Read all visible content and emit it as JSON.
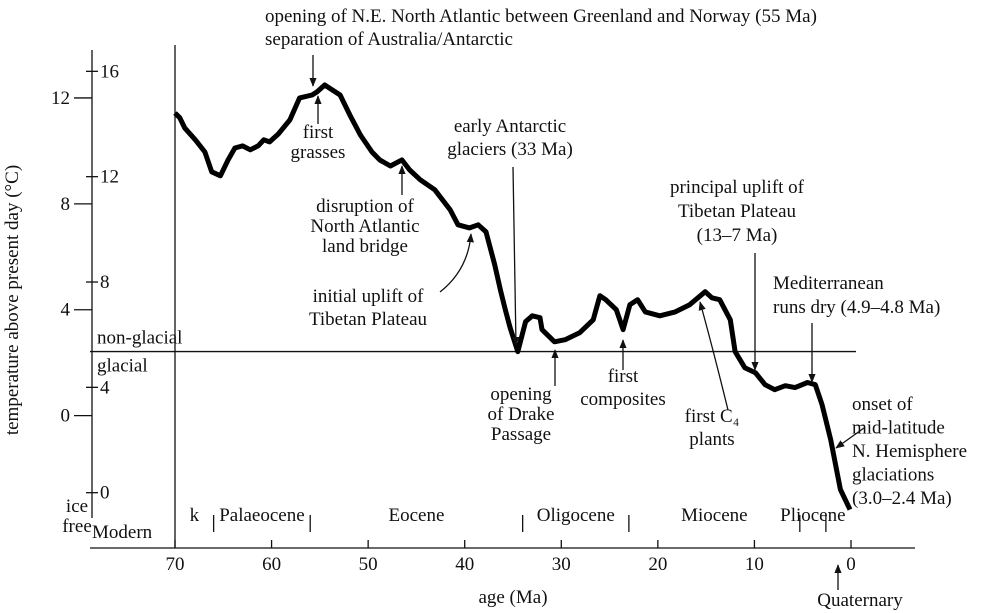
{
  "chart_data": {
    "type": "line",
    "x_label": "age (Ma)",
    "y_label": "temperature above present day (°C)",
    "x": [
      70.0,
      69.5,
      69.0,
      67.9,
      66.9,
      66.2,
      65.3,
      64.5,
      63.8,
      63.0,
      62.2,
      61.4,
      60.8,
      60.2,
      59.3,
      58.1,
      57.1,
      55.8,
      55.3,
      54.5,
      52.9,
      51.9,
      50.8,
      49.6,
      48.8,
      47.7,
      46.5,
      45.7,
      44.6,
      43.1,
      41.5,
      40.7,
      39.5,
      38.6,
      37.8,
      36.9,
      36.3,
      35.8,
      35.3,
      34.5,
      33.7,
      33.0,
      32.2,
      32.0,
      30.7,
      29.6,
      28.1,
      26.7,
      26.0,
      25.4,
      24.3,
      23.6,
      22.9,
      22.1,
      21.3,
      19.8,
      18.2,
      16.7,
      15.1,
      14.4,
      13.6,
      12.5,
      12.0,
      11.0,
      9.9,
      8.9,
      7.9,
      6.8,
      5.8,
      4.5,
      3.7,
      3.0,
      2.1,
      1.1,
      0.1
    ],
    "series": [
      {
        "color": "#000000",
        "values": [
          11.43,
          11.25,
          10.87,
          10.42,
          9.96,
          9.21,
          9.06,
          9.66,
          10.11,
          10.19,
          10.04,
          10.19,
          10.42,
          10.34,
          10.64,
          11.17,
          12.0,
          12.11,
          12.23,
          12.49,
          12.11,
          11.36,
          10.6,
          9.96,
          9.66,
          9.43,
          9.66,
          9.28,
          8.91,
          8.53,
          7.77,
          7.21,
          7.09,
          7.21,
          6.94,
          5.7,
          4.75,
          4.0,
          3.32,
          2.42,
          3.55,
          3.77,
          3.7,
          3.25,
          2.79,
          2.87,
          3.13,
          3.62,
          4.53,
          4.38,
          4.0,
          3.25,
          4.19,
          4.38,
          3.92,
          3.77,
          3.92,
          4.19,
          4.68,
          4.45,
          4.38,
          3.62,
          2.42,
          1.81,
          1.62,
          1.17,
          0.98,
          1.13,
          1.06,
          1.25,
          1.17,
          0.42,
          -0.91,
          -2.79,
          -3.55
        ]
      }
    ],
    "xlim": [
      70,
      0
    ],
    "xticks": [
      70,
      60,
      50,
      40,
      30,
      20,
      10,
      0
    ],
    "ylim": [
      -5,
      14
    ],
    "yticks": [
      0,
      4,
      8,
      12
    ],
    "y2lim": [
      -2.1,
      17
    ],
    "y2ticks": [
      0,
      4,
      8,
      12,
      16
    ],
    "threshold": {
      "value": 2.42,
      "above": "non-glacial",
      "below": "glacial"
    },
    "ice_free": [
      "ice",
      "free"
    ],
    "modern": "Modern",
    "epochs": [
      {
        "name": "k",
        "start": 70,
        "end": 66
      },
      {
        "name": "Palaeocene",
        "start": 66,
        "end": 56
      },
      {
        "name": "Eocene",
        "start": 56,
        "end": 34
      },
      {
        "name": "Oligocene",
        "start": 34,
        "end": 23
      },
      {
        "name": "Miocene",
        "start": 23,
        "end": 5.3
      },
      {
        "name": "Pliocene",
        "start": 5.3,
        "end": 2.6
      },
      {
        "name": "Quaternary",
        "start": 2.6,
        "end": 0
      }
    ],
    "annotations": [
      {
        "lines": [
          "opening of N.E. North Atlantic between Greenland and Norway (55 Ma)",
          "separation of Australia/Antarctic"
        ]
      },
      {
        "lines": [
          "first",
          "grasses"
        ]
      },
      {
        "lines": [
          "disruption of",
          "North Atlantic",
          "land bridge"
        ]
      },
      {
        "lines": [
          "early Antarctic",
          "glaciers (33 Ma)"
        ]
      },
      {
        "lines": [
          "initial uplift of",
          "Tibetan Plateau"
        ]
      },
      {
        "lines": [
          "opening",
          "of Drake",
          "Passage"
        ]
      },
      {
        "lines": [
          "first",
          "composites"
        ]
      },
      {
        "lines": [
          "principal uplift of",
          "Tibetan Plateau",
          "(13–7 Ma)"
        ]
      },
      {
        "lines": [
          "Mediterranean",
          "runs dry (4.9–4.8 Ma)"
        ]
      },
      {
        "lines": [
          "first C₄",
          "plants"
        ]
      },
      {
        "lines": [
          "onset of",
          "mid-latitude",
          "N. Hemisphere",
          "glaciations",
          "(3.0–2.4 Ma)"
        ]
      }
    ]
  }
}
